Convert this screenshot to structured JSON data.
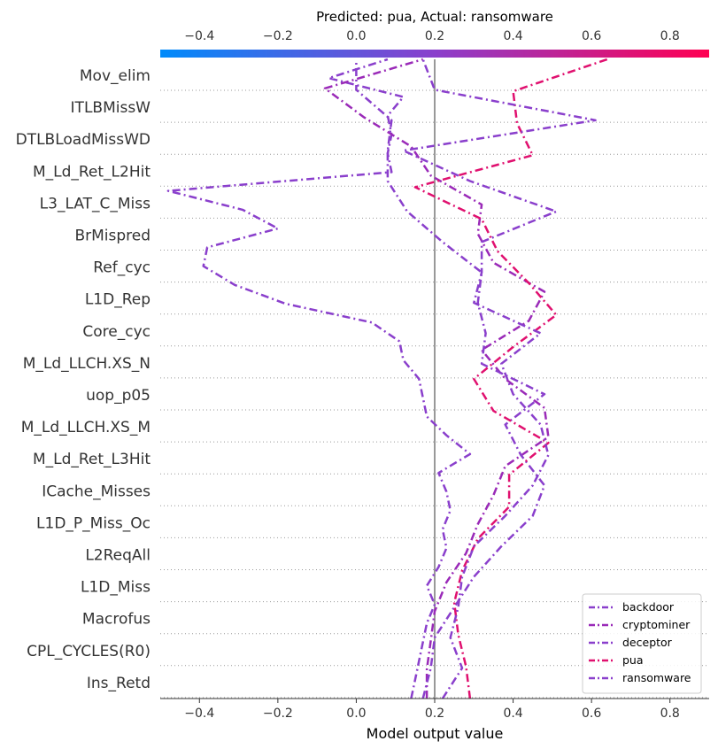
{
  "chart_data": {
    "type": "line",
    "title": "Predicted: pua, Actual: ransomware",
    "xlabel": "Model output value",
    "ylabel": "",
    "xlim": [
      -0.5,
      0.9
    ],
    "xticks": [
      -0.4,
      -0.2,
      0.0,
      0.2,
      0.4,
      0.6,
      0.8
    ],
    "xtick_labels": [
      "−0.4",
      "−0.2",
      "0.0",
      "0.2",
      "0.4",
      "0.6",
      "0.8"
    ],
    "colorbar_ticks": [
      -0.4,
      -0.2,
      0.0,
      0.2,
      0.4,
      0.6,
      0.8
    ],
    "colorbar_tick_labels": [
      "−0.4",
      "−0.2",
      "0.0",
      "0.2",
      "0.4",
      "0.6",
      "0.8"
    ],
    "base_value": 0.2,
    "features": [
      "Mov_elim",
      "ITLBMissW",
      "DTLBLoadMissWD",
      "M_Ld_Ret_L2Hit",
      "L3_LAT_C_Miss",
      "BrMispred",
      "Ref_cyc",
      "L1D_Rep",
      "Core_cyc",
      "M_Ld_LLCH.XS_N",
      "uop_p05",
      "M_Ld_LLCH.XS_M",
      "M_Ld_Ret_L3Hit",
      "ICache_Misses",
      "L1D_P_Miss_Oc",
      "L2ReqAll",
      "L1D_Miss",
      "Macrofus",
      "CPL_CYCLES(R0)",
      "Ins_Retd"
    ],
    "grid": false,
    "legend_position": "lower-right",
    "colors": {
      "backdoor": "#8a3fcc",
      "cryptominer": "#9a2ab8",
      "deceptor": "#8a3fcc",
      "pua": "#e0106f",
      "ransomware": "#8a3fcc",
      "base_line": "#999999",
      "colorbar_low": "#008bfb",
      "colorbar_high": "#ff0052"
    },
    "series": [
      {
        "name": "backdoor",
        "values": [
          0.14,
          0.15,
          0.16,
          0.17,
          0.18,
          0.2,
          0.18,
          0.21,
          0.23,
          0.22,
          0.24,
          0.23,
          0.21,
          0.29,
          0.23,
          0.18,
          0.17,
          0.16,
          0.12,
          0.11,
          0.04,
          -0.18,
          -0.31,
          -0.39,
          -0.38,
          -0.2,
          -0.29,
          -0.48,
          0.09,
          0.08,
          0.09,
          0.08,
          0.12,
          -0.07,
          0.08
        ]
      },
      {
        "name": "cryptominer",
        "values": [
          0.18,
          0.18,
          0.19,
          0.2,
          0.23,
          0.28,
          0.31,
          0.35,
          0.38,
          0.49,
          0.48,
          0.38,
          0.32,
          0.44,
          0.48,
          0.35,
          0.31,
          0.32,
          0.19,
          0.14,
          0.02,
          -0.08,
          0.17
        ]
      },
      {
        "name": "deceptor",
        "values": [
          0.17,
          0.19,
          0.2,
          0.25,
          0.3,
          0.37,
          0.45,
          0.48,
          0.42,
          0.38,
          0.48,
          0.32,
          0.33,
          0.31,
          0.32,
          0.22,
          0.13,
          0.08,
          0.08,
          0.09,
          0.0,
          0.0
        ]
      },
      {
        "name": "pua",
        "values": [
          0.29,
          0.28,
          0.26,
          0.25,
          0.27,
          0.31,
          0.39,
          0.39,
          0.49,
          0.35,
          0.3,
          0.4,
          0.51,
          0.44,
          0.36,
          0.32,
          0.15,
          0.45,
          0.41,
          0.4,
          0.64
        ]
      },
      {
        "name": "ransomware",
        "values": [
          0.22,
          0.27,
          0.24,
          0.26,
          0.27,
          0.3,
          0.38,
          0.45,
          0.49,
          0.47,
          0.4,
          0.37,
          0.47,
          0.3,
          0.32,
          0.32,
          0.51,
          0.29,
          0.12,
          0.61,
          0.2,
          0.17
        ]
      }
    ]
  }
}
